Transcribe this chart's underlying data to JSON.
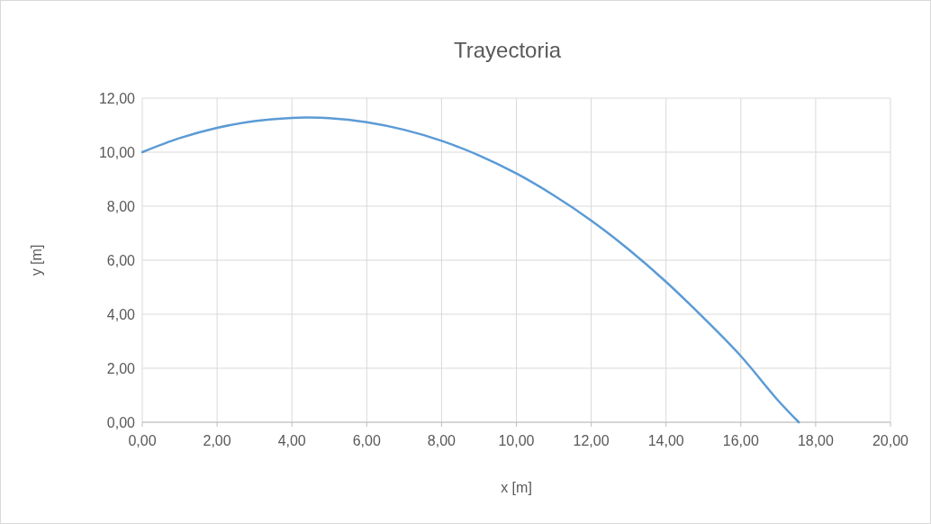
{
  "chart_data": {
    "type": "line",
    "title": "Trayectoria",
    "xlabel": "x [m]",
    "ylabel": "y [m]",
    "x": [
      0,
      1,
      2,
      3,
      4,
      4.4,
      5,
      6,
      7,
      8,
      9,
      10,
      11,
      12,
      13,
      14,
      15,
      16,
      17,
      17.55
    ],
    "series": [
      {
        "color": "#5b9bd5",
        "values": [
          10.0,
          10.52,
          10.9,
          11.15,
          11.27,
          11.28,
          11.26,
          11.11,
          10.83,
          10.42,
          9.88,
          9.21,
          8.4,
          7.47,
          6.4,
          5.2,
          3.87,
          2.45,
          0.8,
          0.0
        ]
      }
    ],
    "xlim": [
      0,
      20
    ],
    "ylim": [
      0,
      12
    ],
    "xticks": [
      {
        "value": 0,
        "label": "0,00"
      },
      {
        "value": 2,
        "label": "2,00"
      },
      {
        "value": 4,
        "label": "4,00"
      },
      {
        "value": 6,
        "label": "6,00"
      },
      {
        "value": 8,
        "label": "8,00"
      },
      {
        "value": 10,
        "label": "10,00"
      },
      {
        "value": 12,
        "label": "12,00"
      },
      {
        "value": 14,
        "label": "14,00"
      },
      {
        "value": 16,
        "label": "16,00"
      },
      {
        "value": 18,
        "label": "18,00"
      },
      {
        "value": 20,
        "label": "20,00"
      }
    ],
    "yticks": [
      {
        "value": 0,
        "label": "0,00"
      },
      {
        "value": 2,
        "label": "2,00"
      },
      {
        "value": 4,
        "label": "4,00"
      },
      {
        "value": 6,
        "label": "6,00"
      },
      {
        "value": 8,
        "label": "8,00"
      },
      {
        "value": 10,
        "label": "10,00"
      },
      {
        "value": 12,
        "label": "12,00"
      }
    ],
    "grid": true,
    "marker": "none",
    "line_style": "solid"
  }
}
